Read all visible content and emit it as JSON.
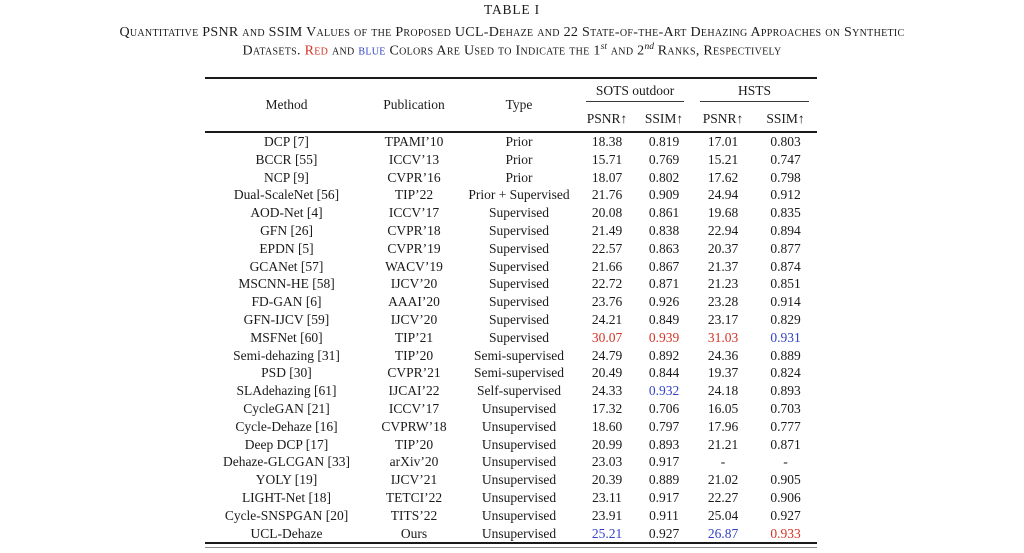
{
  "title": "TABLE I",
  "caption": {
    "line1": "Quantitative PSNR and SSIM Values of the Proposed UCL-Dehaze and 22 State-of-the-Art Dehazing Approaches on Synthetic",
    "line2_pre": "Datasets. ",
    "red_word": "Red",
    "line2_mid1": " and ",
    "blue_word": "blue",
    "line2_mid2": " Colors Are Used to Indicate the 1",
    "sup_first": "st",
    "line2_mid3": " and 2",
    "sup_second": "nd",
    "line2_end": " Ranks, Respectively"
  },
  "colors": {
    "rank1_red": "#d63426",
    "rank2_blue": "#3142c6"
  },
  "table": {
    "headers": {
      "method": "Method",
      "publication": "Publication",
      "type": "Type",
      "group_sots": "SOTS outdoor",
      "group_hsts": "HSTS",
      "psnr_sots": "PSNR↑",
      "ssim_sots": "SSIM↑",
      "psnr_hsts": "PSNR↑",
      "ssim_hsts": "SSIM↑"
    },
    "rows": [
      {
        "method": "DCP [7]",
        "publication": "TPAMI’10",
        "type": "Prior",
        "values": [
          "18.38",
          "0.819",
          "17.01",
          "0.803"
        ],
        "colors": [
          null,
          null,
          null,
          null
        ]
      },
      {
        "method": "BCCR [55]",
        "publication": "ICCV’13",
        "type": "Prior",
        "values": [
          "15.71",
          "0.769",
          "15.21",
          "0.747"
        ],
        "colors": [
          null,
          null,
          null,
          null
        ]
      },
      {
        "method": "NCP [9]",
        "publication": "CVPR’16",
        "type": "Prior",
        "values": [
          "18.07",
          "0.802",
          "17.62",
          "0.798"
        ],
        "colors": [
          null,
          null,
          null,
          null
        ]
      },
      {
        "method": "Dual-ScaleNet [56]",
        "publication": "TIP’22",
        "type": "Prior + Supervised",
        "values": [
          "21.76",
          "0.909",
          "24.94",
          "0.912"
        ],
        "colors": [
          null,
          null,
          null,
          null
        ]
      },
      {
        "method": "AOD-Net [4]",
        "publication": "ICCV’17",
        "type": "Supervised",
        "values": [
          "20.08",
          "0.861",
          "19.68",
          "0.835"
        ],
        "colors": [
          null,
          null,
          null,
          null
        ]
      },
      {
        "method": "GFN [26]",
        "publication": "CVPR’18",
        "type": "Supervised",
        "values": [
          "21.49",
          "0.838",
          "22.94",
          "0.894"
        ],
        "colors": [
          null,
          null,
          null,
          null
        ]
      },
      {
        "method": "EPDN [5]",
        "publication": "CVPR’19",
        "type": "Supervised",
        "values": [
          "22.57",
          "0.863",
          "20.37",
          "0.877"
        ],
        "colors": [
          null,
          null,
          null,
          null
        ]
      },
      {
        "method": "GCANet [57]",
        "publication": "WACV’19",
        "type": "Supervised",
        "values": [
          "21.66",
          "0.867",
          "21.37",
          "0.874"
        ],
        "colors": [
          null,
          null,
          null,
          null
        ]
      },
      {
        "method": "MSCNN-HE [58]",
        "publication": "IJCV’20",
        "type": "Supervised",
        "values": [
          "22.72",
          "0.871",
          "21.23",
          "0.851"
        ],
        "colors": [
          null,
          null,
          null,
          null
        ]
      },
      {
        "method": "FD-GAN [6]",
        "publication": "AAAI’20",
        "type": "Supervised",
        "values": [
          "23.76",
          "0.926",
          "23.28",
          "0.914"
        ],
        "colors": [
          null,
          null,
          null,
          null
        ]
      },
      {
        "method": "GFN-IJCV [59]",
        "publication": "IJCV’20",
        "type": "Supervised",
        "values": [
          "24.21",
          "0.849",
          "23.17",
          "0.829"
        ],
        "colors": [
          null,
          null,
          null,
          null
        ]
      },
      {
        "method": "MSFNet [60]",
        "publication": "TIP’21",
        "type": "Supervised",
        "values": [
          "30.07",
          "0.939",
          "31.03",
          "0.931"
        ],
        "colors": [
          "red",
          "red",
          "red",
          "blue"
        ]
      },
      {
        "method": "Semi-dehazing [31]",
        "publication": "TIP’20",
        "type": "Semi-supervised",
        "values": [
          "24.79",
          "0.892",
          "24.36",
          "0.889"
        ],
        "colors": [
          null,
          null,
          null,
          null
        ]
      },
      {
        "method": "PSD [30]",
        "publication": "CVPR’21",
        "type": "Semi-supervised",
        "values": [
          "20.49",
          "0.844",
          "19.37",
          "0.824"
        ],
        "colors": [
          null,
          null,
          null,
          null
        ]
      },
      {
        "method": "SLAdehazing [61]",
        "publication": "IJCAI’22",
        "type": "Self-supervised",
        "values": [
          "24.33",
          "0.932",
          "24.18",
          "0.893"
        ],
        "colors": [
          null,
          "blue",
          null,
          null
        ]
      },
      {
        "method": "CycleGAN [21]",
        "publication": "ICCV’17",
        "type": "Unsupervised",
        "values": [
          "17.32",
          "0.706",
          "16.05",
          "0.703"
        ],
        "colors": [
          null,
          null,
          null,
          null
        ]
      },
      {
        "method": "Cycle-Dehaze [16]",
        "publication": "CVPRW’18",
        "type": "Unsupervised",
        "values": [
          "18.60",
          "0.797",
          "17.96",
          "0.777"
        ],
        "colors": [
          null,
          null,
          null,
          null
        ]
      },
      {
        "method": "Deep DCP [17]",
        "publication": "TIP’20",
        "type": "Unsupervised",
        "values": [
          "20.99",
          "0.893",
          "21.21",
          "0.871"
        ],
        "colors": [
          null,
          null,
          null,
          null
        ]
      },
      {
        "method": "Dehaze-GLCGAN [33]",
        "publication": "arXiv’20",
        "type": "Unsupervised",
        "values": [
          "23.03",
          "0.917",
          "-",
          "-"
        ],
        "colors": [
          null,
          null,
          null,
          null
        ]
      },
      {
        "method": "YOLY [19]",
        "publication": "IJCV’21",
        "type": "Unsupervised",
        "values": [
          "20.39",
          "0.889",
          "21.02",
          "0.905"
        ],
        "colors": [
          null,
          null,
          null,
          null
        ]
      },
      {
        "method": "LIGHT-Net [18]",
        "publication": "TETCI’22",
        "type": "Unsupervised",
        "values": [
          "23.11",
          "0.917",
          "22.27",
          "0.906"
        ],
        "colors": [
          null,
          null,
          null,
          null
        ]
      },
      {
        "method": "Cycle-SNSPGAN [20]",
        "publication": "TITS’22",
        "type": "Unsupervised",
        "values": [
          "23.91",
          "0.911",
          "25.04",
          "0.927"
        ],
        "colors": [
          null,
          null,
          null,
          null
        ]
      },
      {
        "method": "UCL-Dehaze",
        "publication": "Ours",
        "type": "Unsupervised",
        "values": [
          "25.21",
          "0.927",
          "26.87",
          "0.933"
        ],
        "colors": [
          "blue",
          null,
          "blue",
          "red"
        ]
      }
    ]
  }
}
